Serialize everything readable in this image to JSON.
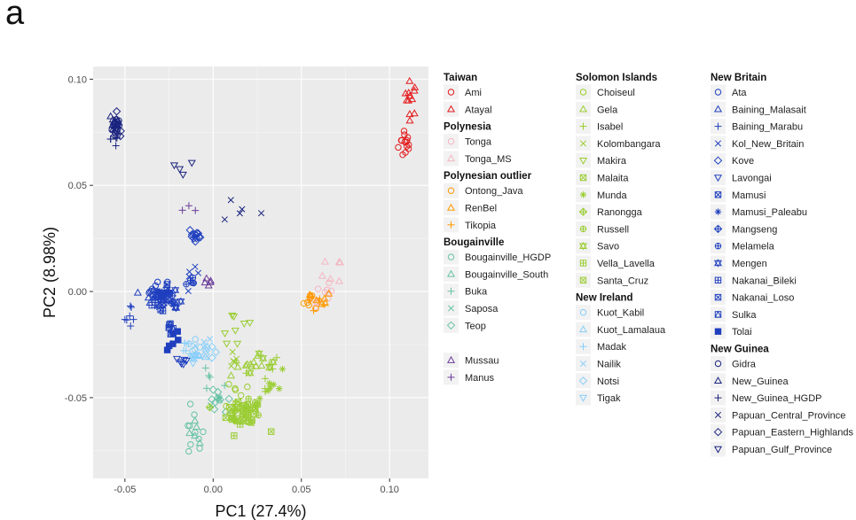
{
  "panel_label": "a",
  "chart_data": {
    "type": "scatter",
    "xlabel": "PC1  (27.4%)",
    "ylabel": "PC2  (8.98%)",
    "xlim": [
      -0.068,
      0.122
    ],
    "ylim": [
      -0.088,
      0.106
    ],
    "x_ticks": [
      -0.05,
      0.0,
      0.05,
      0.1
    ],
    "x_tick_labels": [
      "-0.05",
      "0.00",
      "0.05",
      "0.10"
    ],
    "y_ticks": [
      -0.05,
      0.0,
      0.05,
      0.1
    ],
    "y_tick_labels": [
      "-0.05",
      "0.00",
      "0.05",
      "0.10"
    ],
    "grid": true,
    "background": "#ebebeb",
    "legend_position": "right",
    "legend_groups": [
      {
        "title": "Taiwan",
        "items": [
          {
            "name": "Ami",
            "shape": "circle",
            "color": "#e41a1c"
          },
          {
            "name": "Atayal",
            "shape": "triangle",
            "color": "#e41a1c"
          }
        ]
      },
      {
        "title": "Polynesia",
        "items": [
          {
            "name": "Tonga",
            "shape": "circle",
            "color": "#f4b6c2"
          },
          {
            "name": "Tonga_MS",
            "shape": "triangle",
            "color": "#f4b6c2"
          }
        ]
      },
      {
        "title": "Polynesian outlier",
        "items": [
          {
            "name": "Ontong_Java",
            "shape": "circle",
            "color": "#ff9900"
          },
          {
            "name": "RenBel",
            "shape": "triangle",
            "color": "#ff9900"
          },
          {
            "name": "Tikopia",
            "shape": "plus",
            "color": "#ff9900"
          }
        ]
      },
      {
        "title": "Bougainville",
        "items": [
          {
            "name": "Bougainville_HGDP",
            "shape": "circle",
            "color": "#66c2a5"
          },
          {
            "name": "Bougainville_South",
            "shape": "triangle",
            "color": "#66c2a5"
          },
          {
            "name": "Buka",
            "shape": "plus",
            "color": "#66c2a5"
          },
          {
            "name": "Saposa",
            "shape": "cross",
            "color": "#66c2a5"
          },
          {
            "name": "Teop",
            "shape": "diamond",
            "color": "#66c2a5"
          }
        ]
      },
      {
        "title": "",
        "items": [
          {
            "name": "Mussau",
            "shape": "triangle",
            "color": "#6a3d9a"
          },
          {
            "name": "Manus",
            "shape": "plus",
            "color": "#6a3d9a"
          }
        ]
      },
      {
        "title": "Solomon Islands",
        "items": [
          {
            "name": "Choiseul",
            "shape": "circle",
            "color": "#9acd32"
          },
          {
            "name": "Gela",
            "shape": "triangle",
            "color": "#9acd32"
          },
          {
            "name": "Isabel",
            "shape": "plus",
            "color": "#9acd32"
          },
          {
            "name": "Kolombangara",
            "shape": "cross",
            "color": "#9acd32"
          },
          {
            "name": "Makira",
            "shape": "triangle_down",
            "color": "#9acd32"
          },
          {
            "name": "Malaita",
            "shape": "square_cross",
            "color": "#9acd32"
          },
          {
            "name": "Munda",
            "shape": "asterisk",
            "color": "#9acd32"
          },
          {
            "name": "Ranongga",
            "shape": "diamond_plus",
            "color": "#9acd32"
          },
          {
            "name": "Russell",
            "shape": "circle_plus",
            "color": "#9acd32"
          },
          {
            "name": "Savo",
            "shape": "star",
            "color": "#9acd32"
          },
          {
            "name": "Vella_Lavella",
            "shape": "square_plus",
            "color": "#9acd32"
          },
          {
            "name": "Santa_Cruz",
            "shape": "square_x",
            "color": "#9acd32"
          }
        ]
      },
      {
        "title": "New Ireland",
        "items": [
          {
            "name": "Kuot_Kabil",
            "shape": "circle",
            "color": "#87cefa"
          },
          {
            "name": "Kuot_Lamalaua",
            "shape": "triangle",
            "color": "#87cefa"
          },
          {
            "name": "Madak",
            "shape": "plus",
            "color": "#87cefa"
          },
          {
            "name": "Nailik",
            "shape": "cross",
            "color": "#87cefa"
          },
          {
            "name": "Notsi",
            "shape": "diamond",
            "color": "#87cefa"
          },
          {
            "name": "Tigak",
            "shape": "triangle_down",
            "color": "#87cefa"
          }
        ]
      },
      {
        "title": "New Britain",
        "items": [
          {
            "name": "Ata",
            "shape": "circle",
            "color": "#1f3fbf"
          },
          {
            "name": "Baining_Malasait",
            "shape": "triangle",
            "color": "#1f3fbf"
          },
          {
            "name": "Baining_Marabu",
            "shape": "plus",
            "color": "#1f3fbf"
          },
          {
            "name": "Kol_New_Britain",
            "shape": "cross",
            "color": "#1f3fbf"
          },
          {
            "name": "Kove",
            "shape": "diamond",
            "color": "#1f3fbf"
          },
          {
            "name": "Lavongai",
            "shape": "triangle_down",
            "color": "#1f3fbf"
          },
          {
            "name": "Mamusi",
            "shape": "square_cross",
            "color": "#1f3fbf"
          },
          {
            "name": "Mamusi_Paleabu",
            "shape": "asterisk",
            "color": "#1f3fbf"
          },
          {
            "name": "Mangseng",
            "shape": "diamond_plus",
            "color": "#1f3fbf"
          },
          {
            "name": "Melamela",
            "shape": "circle_plus",
            "color": "#1f3fbf"
          },
          {
            "name": "Mengen",
            "shape": "star",
            "color": "#1f3fbf"
          },
          {
            "name": "Nakanai_Bileki",
            "shape": "square_plus",
            "color": "#1f3fbf"
          },
          {
            "name": "Nakanai_Loso",
            "shape": "square_x",
            "color": "#1f3fbf"
          },
          {
            "name": "Sulka",
            "shape": "square_triangle",
            "color": "#1f3fbf"
          },
          {
            "name": "Tolai",
            "shape": "square_filled",
            "color": "#1f3fbf"
          }
        ]
      },
      {
        "title": "New Guinea",
        "items": [
          {
            "name": "Gidra",
            "shape": "circle",
            "color": "#1a237e"
          },
          {
            "name": "New_Guinea",
            "shape": "triangle",
            "color": "#1a237e"
          },
          {
            "name": "New_Guinea_HGDP",
            "shape": "plus",
            "color": "#1a237e"
          },
          {
            "name": "Papuan_Central_Province",
            "shape": "cross",
            "color": "#1a237e"
          },
          {
            "name": "Papuan_Eastern_Highlands",
            "shape": "diamond",
            "color": "#1a237e"
          },
          {
            "name": "Papuan_Gulf_Province",
            "shape": "triangle_down",
            "color": "#1a237e"
          }
        ]
      }
    ],
    "clusters": [
      {
        "group": "Ami",
        "cx": 0.109,
        "cy": 0.07,
        "sx": 0.002,
        "sy": 0.004,
        "n": 14
      },
      {
        "group": "Atayal",
        "cx": 0.112,
        "cy": 0.091,
        "sx": 0.0018,
        "sy": 0.004,
        "n": 12
      },
      {
        "group": "Tonga",
        "cx": 0.063,
        "cy": -0.002,
        "sx": 0.004,
        "sy": 0.004,
        "n": 12
      },
      {
        "group": "Tonga_MS",
        "cx": 0.067,
        "cy": 0.008,
        "sx": 0.003,
        "sy": 0.004,
        "n": 6
      },
      {
        "group": "Ontong_Java",
        "cx": 0.056,
        "cy": -0.004,
        "sx": 0.003,
        "sy": 0.002,
        "n": 8
      },
      {
        "group": "RenBel",
        "cx": 0.061,
        "cy": -0.004,
        "sx": 0.003,
        "sy": 0.002,
        "n": 6
      },
      {
        "group": "Tikopia",
        "cx": 0.057,
        "cy": -0.006,
        "sx": 0.004,
        "sy": 0.002,
        "n": 5
      },
      {
        "group": "Bougainville_HGDP",
        "cx": -0.011,
        "cy": -0.068,
        "sx": 0.003,
        "sy": 0.006,
        "n": 10
      },
      {
        "group": "Bougainville_South",
        "cx": -0.01,
        "cy": -0.066,
        "sx": 0.003,
        "sy": 0.004,
        "n": 5
      },
      {
        "group": "Buka",
        "cx": -0.002,
        "cy": -0.042,
        "sx": 0.004,
        "sy": 0.004,
        "n": 5
      },
      {
        "group": "Saposa",
        "cx": 0.0,
        "cy": -0.05,
        "sx": 0.003,
        "sy": 0.003,
        "n": 4
      },
      {
        "group": "Teop",
        "cx": 0.003,
        "cy": -0.054,
        "sx": 0.004,
        "sy": 0.004,
        "n": 9
      },
      {
        "group": "Mussau",
        "cx": -0.002,
        "cy": 0.004,
        "sx": 0.0015,
        "sy": 0.001,
        "n": 5
      },
      {
        "group": "Manus",
        "cx": -0.014,
        "cy": 0.039,
        "sx": 0.003,
        "sy": 0.001,
        "n": 3
      },
      {
        "group": "Choiseul",
        "cx": 0.015,
        "cy": -0.048,
        "sx": 0.004,
        "sy": 0.004,
        "n": 8
      },
      {
        "group": "Gela",
        "cx": 0.018,
        "cy": -0.034,
        "sx": 0.005,
        "sy": 0.004,
        "n": 10
      },
      {
        "group": "Isabel",
        "cx": 0.027,
        "cy": -0.04,
        "sx": 0.006,
        "sy": 0.006,
        "n": 9
      },
      {
        "group": "Kolombangara",
        "cx": 0.01,
        "cy": -0.03,
        "sx": 0.003,
        "sy": 0.003,
        "n": 5
      },
      {
        "group": "Makira",
        "cx": 0.013,
        "cy": -0.018,
        "sx": 0.006,
        "sy": 0.006,
        "n": 8
      },
      {
        "group": "Malaita",
        "cx": 0.018,
        "cy": -0.056,
        "sx": 0.005,
        "sy": 0.004,
        "n": 18
      },
      {
        "group": "Munda",
        "cx": 0.032,
        "cy": -0.044,
        "sx": 0.005,
        "sy": 0.005,
        "n": 7
      },
      {
        "group": "Ranongga",
        "cx": 0.012,
        "cy": -0.058,
        "sx": 0.004,
        "sy": 0.003,
        "n": 8
      },
      {
        "group": "Russell",
        "cx": 0.022,
        "cy": -0.052,
        "sx": 0.004,
        "sy": 0.003,
        "n": 6
      },
      {
        "group": "Savo",
        "cx": 0.025,
        "cy": -0.032,
        "sx": 0.004,
        "sy": 0.003,
        "n": 5
      },
      {
        "group": "Vella_Lavella",
        "cx": 0.016,
        "cy": -0.061,
        "sx": 0.004,
        "sy": 0.003,
        "n": 6
      },
      {
        "group": "Santa_Cruz",
        "cx": 0.022,
        "cy": -0.06,
        "sx": 0.004,
        "sy": 0.003,
        "n": 6
      },
      {
        "group": "Kuot_Kabil",
        "cx": -0.01,
        "cy": -0.027,
        "sx": 0.002,
        "sy": 0.002,
        "n": 6
      },
      {
        "group": "Kuot_Lamalaua",
        "cx": -0.008,
        "cy": -0.03,
        "sx": 0.002,
        "sy": 0.002,
        "n": 5
      },
      {
        "group": "Madak",
        "cx": -0.016,
        "cy": -0.026,
        "sx": 0.002,
        "sy": 0.002,
        "n": 5
      },
      {
        "group": "Nailik",
        "cx": -0.006,
        "cy": -0.024,
        "sx": 0.002,
        "sy": 0.002,
        "n": 4
      },
      {
        "group": "Notsi",
        "cx": -0.004,
        "cy": -0.028,
        "sx": 0.002,
        "sy": 0.002,
        "n": 6
      },
      {
        "group": "Tigak",
        "cx": -0.011,
        "cy": -0.032,
        "sx": 0.002,
        "sy": 0.002,
        "n": 5
      },
      {
        "group": "Ata",
        "cx": -0.032,
        "cy": 0.001,
        "sx": 0.003,
        "sy": 0.002,
        "n": 12
      },
      {
        "group": "Baining_Malasait",
        "cx": -0.034,
        "cy": -0.001,
        "sx": 0.003,
        "sy": 0.002,
        "n": 8
      },
      {
        "group": "Baining_Marabu",
        "cx": -0.046,
        "cy": -0.012,
        "sx": 0.002,
        "sy": 0.003,
        "n": 7
      },
      {
        "group": "Kol_New_Britain",
        "cx": -0.012,
        "cy": 0.007,
        "sx": 0.002,
        "sy": 0.002,
        "n": 5
      },
      {
        "group": "Kove",
        "cx": -0.01,
        "cy": 0.026,
        "sx": 0.002,
        "sy": 0.002,
        "n": 12
      },
      {
        "group": "Lavongai",
        "cx": -0.017,
        "cy": -0.033,
        "sx": 0.002,
        "sy": 0.001,
        "n": 6
      },
      {
        "group": "Mamusi",
        "cx": -0.028,
        "cy": -0.001,
        "sx": 0.002,
        "sy": 0.002,
        "n": 8
      },
      {
        "group": "Mamusi_Paleabu",
        "cx": -0.03,
        "cy": -0.003,
        "sx": 0.002,
        "sy": 0.002,
        "n": 6
      },
      {
        "group": "Mangseng",
        "cx": -0.025,
        "cy": -0.002,
        "sx": 0.002,
        "sy": 0.002,
        "n": 6
      },
      {
        "group": "Melamela",
        "cx": -0.012,
        "cy": 0.004,
        "sx": 0.002,
        "sy": 0.002,
        "n": 5
      },
      {
        "group": "Mengen",
        "cx": -0.022,
        "cy": -0.004,
        "sx": 0.002,
        "sy": 0.002,
        "n": 5
      },
      {
        "group": "Nakanai_Bileki",
        "cx": -0.033,
        "cy": -0.004,
        "sx": 0.002,
        "sy": 0.002,
        "n": 6
      },
      {
        "group": "Nakanai_Loso",
        "cx": -0.027,
        "cy": -0.005,
        "sx": 0.002,
        "sy": 0.002,
        "n": 6
      },
      {
        "group": "Sulka",
        "cx": -0.024,
        "cy": -0.02,
        "sx": 0.002,
        "sy": 0.003,
        "n": 6
      },
      {
        "group": "Tolai",
        "cx": -0.022,
        "cy": -0.022,
        "sx": 0.002,
        "sy": 0.003,
        "n": 6
      },
      {
        "group": "Gidra",
        "cx": -0.055,
        "cy": 0.078,
        "sx": 0.0015,
        "sy": 0.003,
        "n": 10
      },
      {
        "group": "New_Guinea",
        "cx": -0.056,
        "cy": 0.08,
        "sx": 0.0015,
        "sy": 0.003,
        "n": 10
      },
      {
        "group": "New_Guinea_HGDP",
        "cx": -0.055,
        "cy": 0.072,
        "sx": 0.0015,
        "sy": 0.003,
        "n": 5
      },
      {
        "group": "Papuan_Central_Province",
        "cx": 0.016,
        "cy": 0.04,
        "sx": 0.01,
        "sy": 0.006,
        "n": 5
      },
      {
        "group": "Papuan_Eastern_Highlands",
        "cx": -0.054,
        "cy": 0.075,
        "sx": 0.0015,
        "sy": 0.003,
        "n": 10
      },
      {
        "group": "Papuan_Gulf_Province",
        "cx": -0.018,
        "cy": 0.058,
        "sx": 0.006,
        "sy": 0.002,
        "n": 4
      }
    ]
  }
}
